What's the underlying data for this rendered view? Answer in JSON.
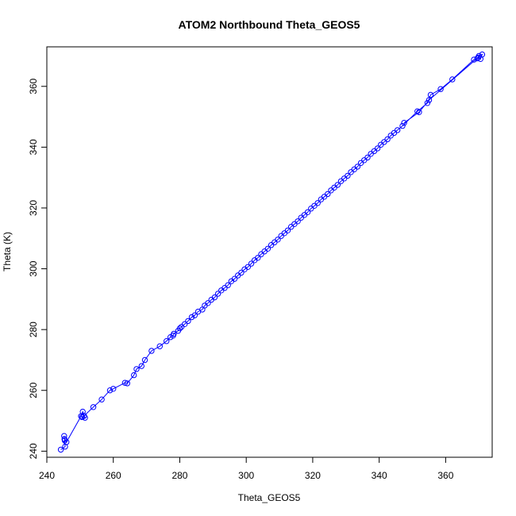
{
  "chart_data": {
    "type": "scatter",
    "title": "ATOM2 Northbound Theta_GEOS5",
    "xlabel": "Theta_GEOS5",
    "ylabel": "Theta (K)",
    "xlim": [
      240,
      374
    ],
    "ylim": [
      238,
      373
    ],
    "xticks": [
      "240",
      "260",
      "280",
      "300",
      "320",
      "340",
      "360"
    ],
    "yticks": [
      "240",
      "260",
      "280",
      "300",
      "320",
      "340",
      "360"
    ],
    "grid": false,
    "legend": "none",
    "series": [
      {
        "color": "#0000ff",
        "marker": "open-circle",
        "line": true,
        "x": [
          244.2,
          245.5,
          245.4,
          245.2,
          245.3,
          245.9,
          250.3,
          250.8,
          251.5,
          250.6,
          251.2,
          254.0,
          256.5,
          259.0,
          260.0,
          263.5,
          264.2,
          266.2,
          267.0,
          268.5,
          269.5,
          271.5,
          274.0,
          276.0,
          277.2,
          278.0,
          278.2,
          279.5,
          280.0,
          280.5,
          281.5,
          282.5,
          283.6,
          284.5,
          285.5,
          286.8,
          287.5,
          288.5,
          289.5,
          290.5,
          291.5,
          292.5,
          293.5,
          294.5,
          295.5,
          296.5,
          297.5,
          298.5,
          299.5,
          300.5,
          301.5,
          302.5,
          303.5,
          304.5,
          305.5,
          306.5,
          307.5,
          308.5,
          309.5,
          310.5,
          311.5,
          312.5,
          313.5,
          314.5,
          315.5,
          316.5,
          317.5,
          318.5,
          319.5,
          320.5,
          321.5,
          322.5,
          323.5,
          324.5,
          325.5,
          326.5,
          327.5,
          328.5,
          329.5,
          330.5,
          331.5,
          332.5,
          333.5,
          334.5,
          335.5,
          336.5,
          337.5,
          338.5,
          339.5,
          340.5,
          341.5,
          342.5,
          343.5,
          344.5,
          345.5,
          347.0,
          351.5,
          354.5,
          355.5,
          358.5,
          362.0,
          368.5,
          369.5,
          370.0,
          371.0,
          370.5,
          369.8,
          355.0,
          352.0,
          347.5
        ],
        "y": [
          240.5,
          241.5,
          243.5,
          245.0,
          244.0,
          243.0,
          251.5,
          253.0,
          251.0,
          251.2,
          251.6,
          254.5,
          257.0,
          260.0,
          260.5,
          262.5,
          262.3,
          265.0,
          267.0,
          268.0,
          270.0,
          273.0,
          274.5,
          276.2,
          277.5,
          278.0,
          278.6,
          279.6,
          280.4,
          280.9,
          281.8,
          282.8,
          284.1,
          284.7,
          285.9,
          286.6,
          287.9,
          288.7,
          289.8,
          290.6,
          291.8,
          292.9,
          293.7,
          294.6,
          295.9,
          296.7,
          297.8,
          298.7,
          299.8,
          300.6,
          301.7,
          302.8,
          303.6,
          304.8,
          305.7,
          306.6,
          307.8,
          308.7,
          309.6,
          310.8,
          311.7,
          312.6,
          313.8,
          314.7,
          315.6,
          316.8,
          317.7,
          318.6,
          319.8,
          320.7,
          321.6,
          322.8,
          323.7,
          324.6,
          325.8,
          326.7,
          327.6,
          328.8,
          329.7,
          330.6,
          331.8,
          332.7,
          333.6,
          334.8,
          335.7,
          336.6,
          337.8,
          338.7,
          339.6,
          340.8,
          341.7,
          342.6,
          343.8,
          344.7,
          345.6,
          347.0,
          351.8,
          354.5,
          357.2,
          359.1,
          362.3,
          368.8,
          369.2,
          370.0,
          370.5,
          369.0,
          369.5,
          355.5,
          351.5,
          348.0
        ]
      }
    ]
  }
}
